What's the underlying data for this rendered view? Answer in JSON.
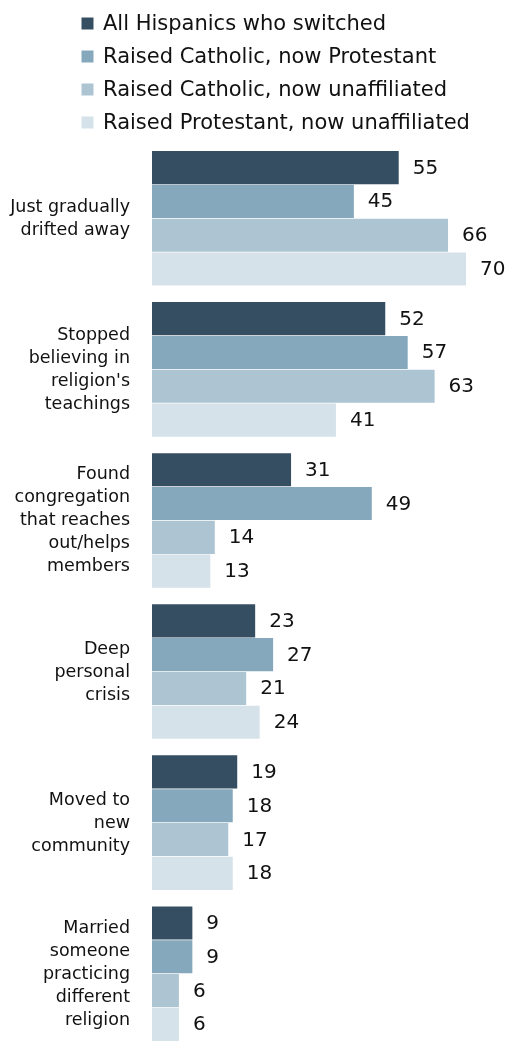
{
  "chart_data": {
    "type": "bar",
    "orientation": "horizontal",
    "legend": "top",
    "data_labels": true,
    "categories": [
      "Just gradually drifted away",
      "Stopped believing in religion's teachings",
      "Found congregation that reaches out/helps members",
      "Deep personal crisis",
      "Moved to new community",
      "Married someone practicing different religion"
    ],
    "series": [
      {
        "name": "All Hispanics who switched",
        "color": "#364e62",
        "values": [
          55,
          52,
          31,
          23,
          19,
          9
        ]
      },
      {
        "name": "Raised Catholic, now Protestant",
        "color": "#86a8bd",
        "values": [
          45,
          57,
          49,
          27,
          18,
          9
        ]
      },
      {
        "name": "Raised Catholic, now unaffiliated",
        "color": "#adc5d2",
        "values": [
          66,
          63,
          14,
          21,
          17,
          6
        ]
      },
      {
        "name": "Raised Protestant, now unaffiliated",
        "color": "#d5e2ea",
        "values": [
          70,
          41,
          13,
          24,
          18,
          6
        ]
      }
    ]
  }
}
